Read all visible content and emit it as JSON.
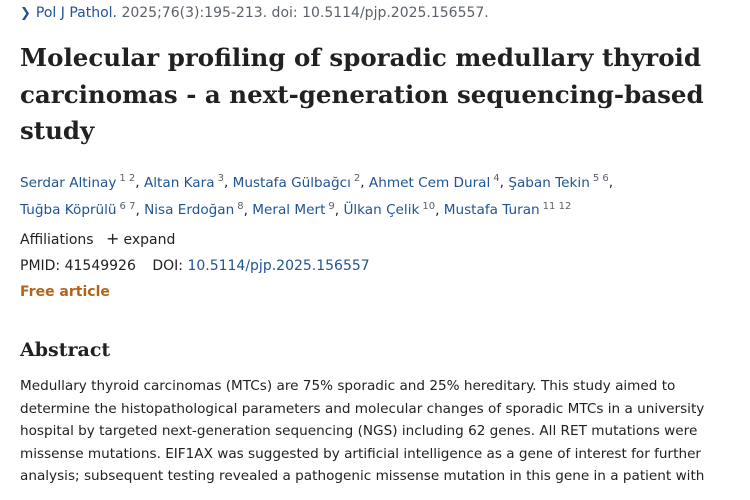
{
  "citation": {
    "journal": "Pol J Pathol.",
    "details": "2025;76(3):195-213. doi: 10.5114/pjp.2025.156557."
  },
  "title_lines": [
    "Molecular profiling of sporadic medullary thyroid",
    "carcinomas - a next-generation sequencing-based",
    "study"
  ],
  "authors": [
    {
      "name": "Serdar Altinay",
      "sup": "1 2"
    },
    {
      "name": "Altan Kara",
      "sup": "3"
    },
    {
      "name": "Mustafa Gülbağcı",
      "sup": "2"
    },
    {
      "name": "Ahmet Cem Dural",
      "sup": "4"
    },
    {
      "name": "Şaban Tekin",
      "sup": "5 6"
    },
    {
      "name": "Tuğba Köprülü",
      "sup": "6 7"
    },
    {
      "name": "Nisa Erdoğan",
      "sup": "8"
    },
    {
      "name": "Meral Mert",
      "sup": "9"
    },
    {
      "name": "Ülkan Çelik",
      "sup": "10"
    },
    {
      "name": "Mustafa Turan",
      "sup": "11 12"
    }
  ],
  "affiliations": {
    "label": "Affiliations",
    "expand_icon": "+",
    "expand_label": "expand"
  },
  "ids": {
    "pmid_label": "PMID:",
    "pmid": "41549926",
    "doi_label": "DOI:",
    "doi": "10.5114/pjp.2025.156557"
  },
  "free_label": "Free article",
  "abstract": {
    "heading": "Abstract",
    "lines": [
      "Medullary thyroid carcinomas (MTCs) are 75% sporadic and 25% hereditary. This study aimed to",
      "determine the histopathological parameters and molecular changes of sporadic MTCs in a university",
      "hospital by targeted next-generation sequencing (NGS) including 62 genes. All RET mutations were",
      "missense mutations. EIF1AX was suggested by artificial intelligence as a gene of interest for further",
      "analysis; subsequent testing revealed a pathogenic missense mutation in this gene in a patient with"
    ]
  },
  "colors": {
    "link": "#205493",
    "text": "#212121",
    "muted": "#5b616b",
    "free": "#b3641c"
  }
}
